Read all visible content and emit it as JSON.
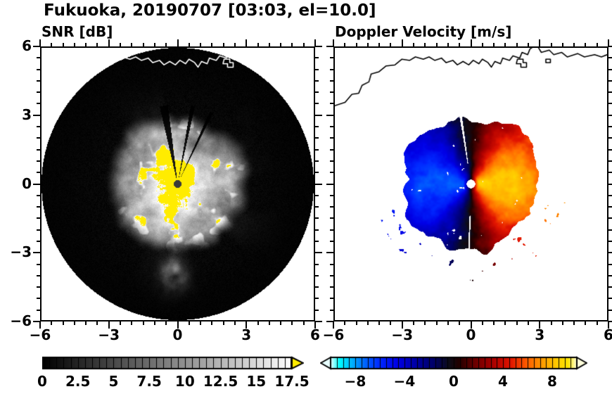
{
  "title": "Fukuoka, 20190707 [03:03, el=10.0]",
  "site": "Fukuoka",
  "date": "20190707",
  "time": "03:03",
  "elevation_deg": 10.0,
  "panels": {
    "snr": {
      "title": "SNR [dB]"
    },
    "doppler": {
      "title": "Doppler Velocity [m/s]"
    }
  },
  "chart_data": [
    {
      "type": "heatmap",
      "plot_kind": "radar-PPI",
      "title": "SNR [dB]",
      "xlim": [
        -6,
        6
      ],
      "ylim": [
        -6,
        6
      ],
      "xticks": [
        -6,
        -3,
        0,
        3,
        6
      ],
      "xtick_labels": [
        "−6",
        "−3",
        "0",
        "3",
        "6"
      ],
      "yticks": [
        6,
        3,
        0,
        -3,
        -6
      ],
      "ytick_labels": [
        "6",
        "3",
        "0",
        "−3",
        "−6"
      ],
      "minor_tick_step": 0.5,
      "scan_radius": 6,
      "echo_radius": 3.3,
      "blocked_sectors_deg": [
        [
          63.5,
          66
        ],
        [
          77.5,
          80.5
        ],
        [
          97,
          103
        ]
      ],
      "center_marker_color": "#3a3a3a",
      "coastline_color": "#ffffff",
      "colorbar": {
        "range": [
          0,
          17.5
        ],
        "ticks": [
          0,
          2.5,
          5,
          7.5,
          10,
          12.5,
          15,
          17.5
        ],
        "tick_labels": [
          "0",
          "2.5",
          "5",
          "7.5",
          "10",
          "12.5",
          "15",
          "17.5"
        ],
        "segment_step": 0.5,
        "stops": [
          [
            0,
            "#000000"
          ],
          [
            17.5,
            "#ffffff"
          ]
        ],
        "over_color": "#ffec00"
      }
    },
    {
      "type": "heatmap",
      "plot_kind": "radar-PPI",
      "title": "Doppler Velocity [m/s]",
      "xlim": [
        -6,
        6
      ],
      "ylim": [
        -6,
        6
      ],
      "xticks": [
        -6,
        -3,
        0,
        3,
        6
      ],
      "xtick_labels": [
        "−6",
        "−3",
        "0",
        "3",
        "6"
      ],
      "yticks": [
        6,
        3,
        0,
        -3,
        -6
      ],
      "ytick_labels": [],
      "minor_tick_step": 0.5,
      "echo_radius": 3.0,
      "velocity_amp_east": 8.4,
      "velocity_amp_west": 6.8,
      "center_marker_color": "#ffffff",
      "coastline_color": "#000000",
      "colorbar": {
        "range": [
          -10,
          10
        ],
        "ticks": [
          -8,
          -4,
          0,
          4,
          8
        ],
        "tick_labels": [
          "−8",
          "−4",
          "0",
          "4",
          "8"
        ],
        "segment_step": 0.5,
        "stops": [
          [
            -10,
            "#e8ffff"
          ],
          [
            -9.3,
            "#00ffff"
          ],
          [
            -8.3,
            "#00b4ff"
          ],
          [
            -7.2,
            "#0064ff"
          ],
          [
            -6,
            "#0028ff"
          ],
          [
            -4.6,
            "#0000e6"
          ],
          [
            -3.2,
            "#0000aa"
          ],
          [
            -1.6,
            "#000066"
          ],
          [
            -0.4,
            "#0c0c18"
          ],
          [
            0.4,
            "#200000"
          ],
          [
            1.6,
            "#660000"
          ],
          [
            3.2,
            "#aa0000"
          ],
          [
            4.6,
            "#e11400"
          ],
          [
            6,
            "#ff6000"
          ],
          [
            7.2,
            "#ff9c00"
          ],
          [
            8.3,
            "#ffc800"
          ],
          [
            9.3,
            "#ffe600"
          ],
          [
            10,
            "#ffffdc"
          ]
        ],
        "under_arrow_color": "#e8ffff",
        "over_arrow_color": "#ffffdc"
      }
    }
  ],
  "coastline_segments": [
    [
      [
        -6.0,
        3.45
      ],
      [
        -5.55,
        3.6
      ],
      [
        -5.25,
        3.95
      ],
      [
        -4.95,
        4.0
      ],
      [
        -4.8,
        4.35
      ],
      [
        -4.5,
        4.5
      ],
      [
        -4.4,
        4.85
      ],
      [
        -4.05,
        4.95
      ],
      [
        -3.75,
        5.2
      ],
      [
        -3.35,
        5.25
      ],
      [
        -3.05,
        5.5
      ],
      [
        -2.7,
        5.45
      ],
      [
        -2.45,
        5.6
      ],
      [
        -2.1,
        5.5
      ],
      [
        -1.85,
        5.6
      ],
      [
        -1.6,
        5.45
      ],
      [
        -1.3,
        5.55
      ],
      [
        -1.1,
        5.35
      ],
      [
        -0.8,
        5.45
      ],
      [
        -0.6,
        5.25
      ],
      [
        -0.35,
        5.4
      ],
      [
        -0.1,
        5.25
      ],
      [
        0.1,
        5.45
      ],
      [
        0.35,
        5.3
      ],
      [
        0.5,
        5.5
      ],
      [
        0.75,
        5.35
      ],
      [
        0.9,
        5.15
      ],
      [
        1.05,
        5.4
      ],
      [
        1.3,
        5.3
      ],
      [
        1.4,
        5.55
      ],
      [
        1.7,
        5.45
      ],
      [
        1.85,
        5.65
      ],
      [
        2.15,
        5.55
      ],
      [
        2.25,
        5.8
      ],
      [
        2.5,
        5.7
      ],
      [
        2.6,
        5.95
      ],
      [
        2.75,
        6.05
      ]
    ],
    [
      [
        2.95,
        6.05
      ],
      [
        3.1,
        5.8
      ],
      [
        3.45,
        5.9
      ],
      [
        3.65,
        5.7
      ],
      [
        4.0,
        5.8
      ],
      [
        4.25,
        5.6
      ],
      [
        4.7,
        5.75
      ],
      [
        5.0,
        5.6
      ],
      [
        5.45,
        5.7
      ],
      [
        5.75,
        5.6
      ],
      [
        6.0,
        5.7
      ]
    ],
    [
      [
        2.0,
        5.3
      ],
      [
        2.2,
        5.3
      ],
      [
        2.2,
        5.15
      ],
      [
        2.45,
        5.15
      ],
      [
        2.45,
        5.35
      ],
      [
        2.3,
        5.35
      ],
      [
        2.3,
        5.5
      ],
      [
        2.05,
        5.5
      ],
      [
        2.0,
        5.3
      ]
    ],
    [
      [
        3.3,
        5.5
      ],
      [
        3.5,
        5.5
      ],
      [
        3.5,
        5.35
      ],
      [
        3.3,
        5.35
      ],
      [
        3.3,
        5.5
      ]
    ]
  ]
}
